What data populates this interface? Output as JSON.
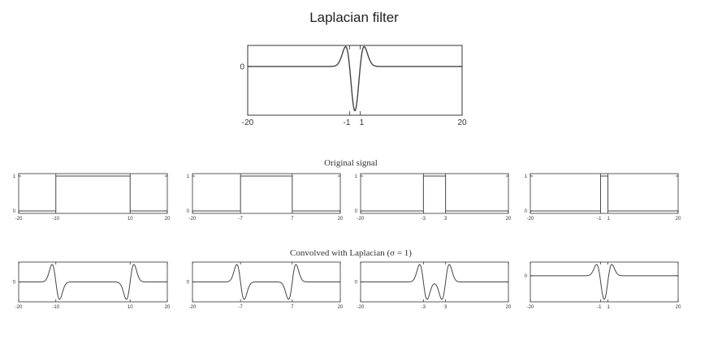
{
  "figure": {
    "title": "Laplacian filter",
    "row1_title": "Original signal",
    "row2_title": "Convolved with Laplacian (σ = 1)"
  },
  "chart_data": [
    {
      "type": "line",
      "panel": "laplacian-filter",
      "title": "Laplacian filter",
      "xlim": [
        -20,
        20
      ],
      "xticks": [
        -20,
        -1,
        1,
        20
      ],
      "xtick_labels": [
        "-20",
        "-1",
        "1",
        "20"
      ],
      "yticks": [
        0
      ],
      "ytick_labels": [
        "0"
      ],
      "function": "laplacian-of-gaussian",
      "sigma": 1
    },
    {
      "type": "line",
      "panel": "original-signal-1",
      "function": "box",
      "pulse": [
        -10,
        10
      ],
      "xlim": [
        -20,
        20
      ],
      "ylim": [
        0,
        1
      ],
      "xticks": [
        -20,
        -10,
        10,
        20
      ],
      "xtick_labels": [
        "-20",
        "-10",
        "10",
        "20"
      ],
      "yticks": [
        0,
        1
      ],
      "ytick_labels": [
        "0",
        "1"
      ]
    },
    {
      "type": "line",
      "panel": "original-signal-2",
      "function": "box",
      "pulse": [
        -7,
        7
      ],
      "xlim": [
        -20,
        20
      ],
      "ylim": [
        0,
        1
      ],
      "xticks": [
        -20,
        -7,
        7,
        20
      ],
      "xtick_labels": [
        "-20",
        "-7",
        "7",
        "20"
      ],
      "yticks": [
        0,
        1
      ],
      "ytick_labels": [
        "0",
        "1"
      ]
    },
    {
      "type": "line",
      "panel": "original-signal-3",
      "function": "box",
      "pulse": [
        -3,
        3
      ],
      "xlim": [
        -20,
        20
      ],
      "ylim": [
        0,
        1
      ],
      "xticks": [
        -20,
        -3,
        3,
        20
      ],
      "xtick_labels": [
        "-20",
        "-3",
        "3",
        "20"
      ],
      "yticks": [
        0,
        1
      ],
      "ytick_labels": [
        "0",
        "1"
      ]
    },
    {
      "type": "line",
      "panel": "original-signal-4",
      "function": "box",
      "pulse": [
        -1,
        1
      ],
      "xlim": [
        -20,
        20
      ],
      "ylim": [
        0,
        1
      ],
      "xticks": [
        -20,
        -1,
        1,
        20
      ],
      "xtick_labels": [
        "-20",
        "-1",
        "1",
        "20"
      ],
      "yticks": [
        0,
        1
      ],
      "ytick_labels": [
        "0",
        "1"
      ]
    },
    {
      "type": "line",
      "panel": "convolved-1",
      "function": "box-convolved-laplacian",
      "pulse": [
        -10,
        10
      ],
      "sigma": 1,
      "xlim": [
        -20,
        20
      ],
      "xticks": [
        -20,
        -10,
        10,
        20
      ],
      "xtick_labels": [
        "-20",
        "-10",
        "10",
        "20"
      ],
      "yticks": [
        0
      ],
      "ytick_labels": [
        "0"
      ]
    },
    {
      "type": "line",
      "panel": "convolved-2",
      "function": "box-convolved-laplacian",
      "pulse": [
        -7,
        7
      ],
      "sigma": 1,
      "xlim": [
        -20,
        20
      ],
      "xticks": [
        -20,
        -7,
        7,
        20
      ],
      "xtick_labels": [
        "-20",
        "-7",
        "7",
        "20"
      ],
      "yticks": [
        0
      ],
      "ytick_labels": [
        "0"
      ]
    },
    {
      "type": "line",
      "panel": "convolved-3",
      "function": "box-convolved-laplacian",
      "pulse": [
        -3,
        3
      ],
      "sigma": 1,
      "xlim": [
        -20,
        20
      ],
      "xticks": [
        -20,
        -3,
        3,
        20
      ],
      "xtick_labels": [
        "-20",
        "-3",
        "3",
        "20"
      ],
      "yticks": [
        0
      ],
      "ytick_labels": [
        "0"
      ]
    },
    {
      "type": "line",
      "panel": "convolved-4",
      "function": "box-convolved-laplacian",
      "pulse": [
        -1,
        1
      ],
      "sigma": 1,
      "xlim": [
        -20,
        20
      ],
      "xticks": [
        -20,
        -1,
        1,
        20
      ],
      "xtick_labels": [
        "-20",
        "-1",
        "1",
        "20"
      ],
      "yticks": [
        0
      ],
      "ytick_labels": [
        "0"
      ]
    }
  ]
}
